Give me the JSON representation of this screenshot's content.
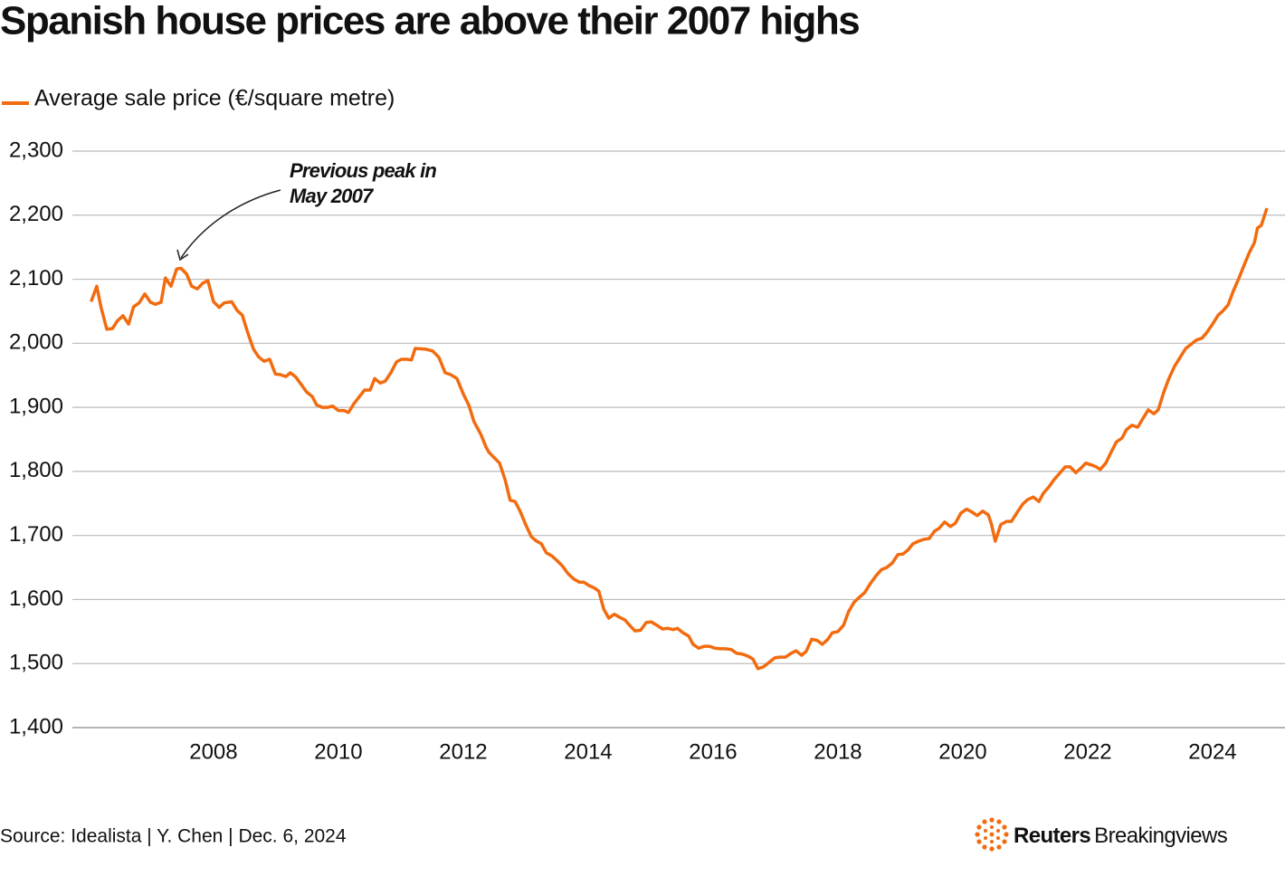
{
  "chart_data": {
    "type": "line",
    "title": "Spanish house prices are above their 2007 highs",
    "annotation": [
      "Previous peak in",
      "May 2007"
    ],
    "source": "Source: Idealista | Y. Chen | Dec. 6, 2024",
    "credit": [
      "Reuters",
      "Breakingviews"
    ],
    "xlim": [
      2005.74,
      2025.16
    ],
    "xticks": [
      2008,
      2010,
      2012,
      2014,
      2016,
      2018,
      2020,
      2022,
      2024
    ],
    "ylim": [
      1400,
      2300
    ],
    "yticks": [
      {
        "value": 1400,
        "label": "1,400"
      },
      {
        "value": 1500,
        "label": "1,500"
      },
      {
        "value": 1600,
        "label": "1,600"
      },
      {
        "value": 1700,
        "label": "1,700"
      },
      {
        "value": 1800,
        "label": "1,800"
      },
      {
        "value": 1900,
        "label": "1,900"
      },
      {
        "value": 2000,
        "label": "2,000"
      },
      {
        "value": 2100,
        "label": "2,100"
      },
      {
        "value": 2200,
        "label": "2,200"
      },
      {
        "value": 2300,
        "label": "2,300"
      }
    ],
    "grid": true,
    "x": [
      2006.04,
      2006.13,
      2006.2,
      2006.29,
      2006.38,
      2006.46,
      2006.55,
      2006.64,
      2006.72,
      2006.81,
      2006.9,
      2006.99,
      2007.07,
      2007.16,
      2007.23,
      2007.32,
      2007.41,
      2007.48,
      2007.57,
      2007.65,
      2007.74,
      2007.83,
      2007.91,
      2008.0,
      2008.09,
      2008.17,
      2008.29,
      2008.38,
      2008.46,
      2008.55,
      2008.64,
      2008.72,
      2008.81,
      2008.9,
      2008.99,
      2009.07,
      2009.16,
      2009.23,
      2009.32,
      2009.41,
      2009.49,
      2009.58,
      2009.65,
      2009.74,
      2009.83,
      2009.91,
      2010.0,
      2010.09,
      2010.16,
      2010.25,
      2010.33,
      2010.42,
      2010.51,
      2010.58,
      2010.67,
      2010.75,
      2010.84,
      2010.93,
      2011.01,
      2011.1,
      2011.17,
      2011.23,
      2011.39,
      2011.51,
      2011.61,
      2011.71,
      2011.8,
      2011.9,
      2012.0,
      2012.09,
      2012.17,
      2012.28,
      2012.36,
      2012.41,
      2012.58,
      2012.67,
      2012.75,
      2012.83,
      2012.91,
      2013.0,
      2013.09,
      2013.16,
      2013.25,
      2013.33,
      2013.42,
      2013.51,
      2013.59,
      2013.68,
      2013.77,
      2013.86,
      2013.93,
      2014.01,
      2014.1,
      2014.17,
      2014.25,
      2014.33,
      2014.42,
      2014.51,
      2014.59,
      2014.68,
      2014.75,
      2014.84,
      2014.93,
      2015.01,
      2015.1,
      2015.19,
      2015.28,
      2015.36,
      2015.43,
      2015.52,
      2015.61,
      2015.68,
      2015.77,
      2015.86,
      2015.94,
      2016.03,
      2016.12,
      2016.2,
      2016.29,
      2016.38,
      2016.46,
      2016.55,
      2016.64,
      2016.72,
      2016.81,
      2016.9,
      2016.99,
      2017.07,
      2017.16,
      2017.25,
      2017.33,
      2017.42,
      2017.49,
      2017.58,
      2017.67,
      2017.75,
      2017.84,
      2017.91,
      2018.0,
      2018.09,
      2018.17,
      2018.26,
      2018.35,
      2018.43,
      2018.52,
      2018.61,
      2018.7,
      2018.78,
      2018.87,
      2018.96,
      2019.04,
      2019.12,
      2019.2,
      2019.29,
      2019.38,
      2019.46,
      2019.55,
      2019.62,
      2019.71,
      2019.8,
      2019.88,
      2019.97,
      2020.06,
      2020.14,
      2020.23,
      2020.32,
      2020.41,
      2020.46,
      2020.52,
      2020.61,
      2020.7,
      2020.78,
      2020.87,
      2020.96,
      2021.04,
      2021.13,
      2021.22,
      2021.29,
      2021.38,
      2021.46,
      2021.55,
      2021.64,
      2021.72,
      2021.81,
      2021.88,
      2021.97,
      2022.06,
      2022.14,
      2022.2,
      2022.29,
      2022.38,
      2022.46,
      2022.55,
      2022.62,
      2022.71,
      2022.8,
      2022.88,
      2022.97,
      2023.06,
      2023.13,
      2023.22,
      2023.3,
      2023.39,
      2023.48,
      2023.57,
      2023.65,
      2023.74,
      2023.83,
      2023.91,
      2024.0,
      2024.09,
      2024.17,
      2024.25,
      2024.33,
      2024.42,
      2024.51,
      2024.59,
      2024.67,
      2024.72,
      2024.78,
      2024.87
    ],
    "series": [
      {
        "name": "Average sale price (€/square metre)",
        "color": "#f26b0f",
        "values": [
          2065,
          2089,
          2056,
          2022,
          2023,
          2035,
          2043,
          2030,
          2057,
          2063,
          2077,
          2064,
          2061,
          2064,
          2102,
          2089,
          2116,
          2117,
          2108,
          2089,
          2085,
          2094,
          2098,
          2065,
          2056,
          2063,
          2065,
          2051,
          2044,
          2016,
          1991,
          1979,
          1972,
          1975,
          1952,
          1951,
          1948,
          1954,
          1947,
          1935,
          1924,
          1917,
          1904,
          1900,
          1900,
          1902,
          1895,
          1895,
          1892,
          1906,
          1916,
          1927,
          1927,
          1945,
          1938,
          1941,
          1954,
          1971,
          1975,
          1975,
          1974,
          1992,
          1991,
          1988,
          1978,
          1954,
          1951,
          1945,
          1921,
          1903,
          1878,
          1858,
          1839,
          1830,
          1813,
          1787,
          1755,
          1753,
          1738,
          1717,
          1698,
          1692,
          1687,
          1673,
          1668,
          1660,
          1652,
          1640,
          1632,
          1627,
          1627,
          1622,
          1618,
          1613,
          1585,
          1571,
          1577,
          1572,
          1568,
          1558,
          1551,
          1552,
          1564,
          1565,
          1560,
          1554,
          1555,
          1553,
          1555,
          1548,
          1543,
          1530,
          1524,
          1527,
          1527,
          1524,
          1523,
          1523,
          1522,
          1516,
          1515,
          1512,
          1507,
          1492,
          1495,
          1502,
          1509,
          1510,
          1510,
          1516,
          1520,
          1513,
          1519,
          1538,
          1536,
          1530,
          1538,
          1548,
          1550,
          1560,
          1581,
          1596,
          1604,
          1611,
          1625,
          1637,
          1647,
          1650,
          1657,
          1670,
          1671,
          1677,
          1687,
          1691,
          1694,
          1695,
          1707,
          1711,
          1721,
          1714,
          1719,
          1735,
          1741,
          1737,
          1731,
          1738,
          1732,
          1717,
          1691,
          1717,
          1722,
          1722,
          1736,
          1749,
          1756,
          1760,
          1753,
          1766,
          1776,
          1787,
          1797,
          1807,
          1807,
          1798,
          1804,
          1813,
          1810,
          1807,
          1803,
          1813,
          1831,
          1846,
          1852,
          1865,
          1872,
          1869,
          1882,
          1896,
          1890,
          1896,
          1924,
          1945,
          1964,
          1978,
          1992,
          1998,
          2005,
          2008,
          2017,
          2030,
          2044,
          2051,
          2060,
          2081,
          2101,
          2123,
          2142,
          2157,
          2180,
          2184,
          2211
        ]
      }
    ]
  }
}
